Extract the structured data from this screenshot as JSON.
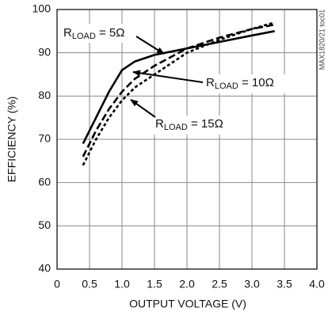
{
  "chart_data": {
    "type": "line",
    "x_label": "OUTPUT VOLTAGE (V)",
    "y_label": "EFFICIENCY (%)",
    "side_note": "MAX1820/21 toc01",
    "xlim": [
      0,
      4
    ],
    "ylim": [
      40,
      100
    ],
    "xticks": [
      0,
      0.5,
      {
        "value": 1,
        "label": "1.0"
      },
      1.5,
      {
        "value": 2,
        "label": "2.0"
      },
      2.5,
      {
        "value": 3,
        "label": "3.0"
      },
      3.5,
      {
        "value": 4,
        "label": "4.0"
      }
    ],
    "yticks": [
      40,
      50,
      60,
      70,
      80,
      90,
      100
    ],
    "grid": true,
    "x": [
      0.4,
      0.6,
      0.8,
      1.0,
      1.2,
      1.5,
      2.0,
      2.5,
      3.0,
      3.35
    ],
    "series": [
      {
        "name_parts": [
          "R",
          "LOAD",
          " = 5Ω"
        ],
        "color": "#000000",
        "style": "solid",
        "values": [
          69,
          75,
          81,
          86,
          88,
          89.5,
          91,
          92.5,
          94,
          95
        ]
      },
      {
        "name_parts": [
          "R",
          "LOAD",
          " = 10Ω"
        ],
        "color": "#000000",
        "style": "dashed",
        "values": [
          66,
          72,
          77,
          81,
          84,
          87,
          91,
          93.5,
          95.5,
          96.5
        ]
      },
      {
        "name_parts": [
          "R",
          "LOAD",
          " = 15Ω"
        ],
        "color": "#000000",
        "style": "dotted",
        "values": [
          64,
          70,
          75,
          79,
          82,
          85,
          90,
          93,
          95.5,
          97
        ]
      }
    ]
  }
}
